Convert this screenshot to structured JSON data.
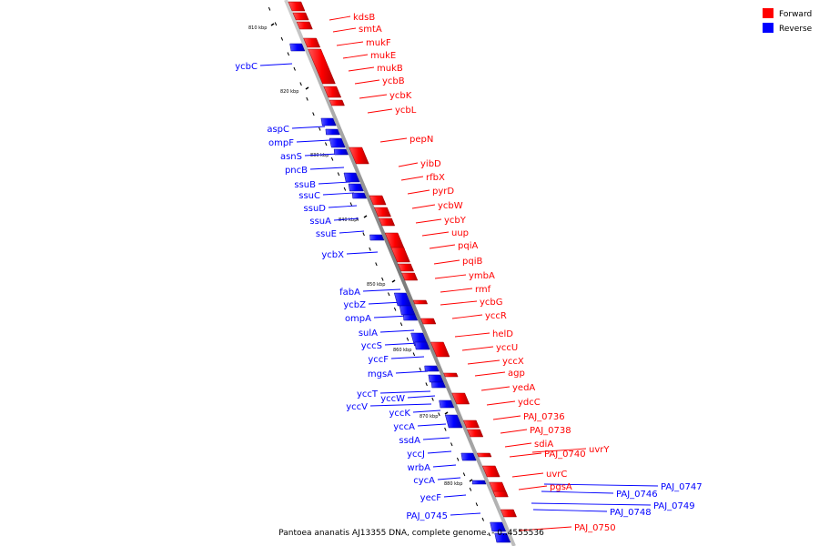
{
  "title": "Pantoea ananatis AJ13355 DNA, complete genome. - 0..4555536",
  "legend": {
    "forward": {
      "label": "Forward",
      "color": "#ff0000"
    },
    "reverse": {
      "label": "Reverse",
      "color": "#0000ff"
    }
  },
  "backbone_color": "#8c8c8c",
  "kbp_marks": [
    "810 kbp",
    "820 kbp",
    "830 kbp",
    "840 kbp",
    "850 kbp",
    "860 kbp",
    "870 kbp",
    "880 kbp"
  ],
  "forward_genes": [
    "kdsB",
    "smtA",
    "mukF",
    "mukE",
    "mukB",
    "ycbB",
    "ycbK",
    "ycbL",
    "pepN",
    "yibD",
    "rfbX",
    "pyrD",
    "ycbW",
    "ycbY",
    "uup",
    "pqiA",
    "pqiB",
    "ymbA",
    "rmf",
    "ycbG",
    "yccR",
    "helD",
    "yccU",
    "yccX",
    "agp",
    "yedA",
    "ydcC",
    "PAJ_0736",
    "PAJ_0738",
    "sdiA",
    "PAJ_0740",
    "uvrY",
    "uvrC",
    "pgsA",
    "PAJ_0750"
  ],
  "reverse_genes": [
    "ycbC",
    "aspC",
    "ompF",
    "asnS",
    "pncB",
    "ssuB",
    "ssuC",
    "ssuD",
    "ssuA",
    "ssuE",
    "ycbX",
    "fabA",
    "ycbZ",
    "ompA",
    "sulA",
    "yccS",
    "yccF",
    "mgsA",
    "yccT",
    "yccW",
    "yccV",
    "yccK",
    "yccA",
    "ssdA",
    "yccJ",
    "wrbA",
    "cycA",
    "yecF",
    "PAJ_0745",
    "PAJ_0746",
    "PAJ_0747",
    "PAJ_0748",
    "PAJ_0749"
  ]
}
